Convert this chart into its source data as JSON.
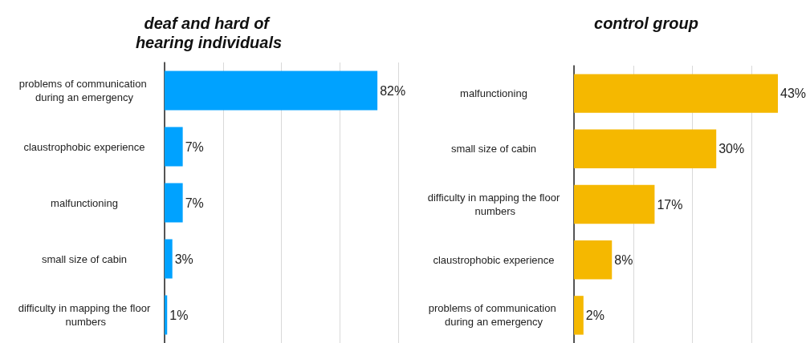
{
  "chart_data": [
    {
      "type": "bar",
      "orientation": "horizontal",
      "title": "deaf and hard of hearing individuals",
      "categories": [
        "problems of communication during an emergency",
        "claustrophobic experience",
        "malfunctioning",
        "small size of cabin",
        "difficulty in mapping the floor numbers"
      ],
      "values": [
        82,
        7,
        7,
        3,
        1
      ],
      "value_labels": [
        "82%",
        "7%",
        "7%",
        "3%",
        "1%"
      ],
      "color": "#00a2ff",
      "xlim": [
        0,
        90
      ],
      "xticks": [
        {
          "value": 0,
          "label": null
        },
        {
          "value": 22.5,
          "label": null
        },
        {
          "value": 45,
          "label": null
        },
        {
          "value": 67.5,
          "label": null
        },
        {
          "value": 90,
          "label": null
        }
      ],
      "grid": "x",
      "tick_labels": "y"
    },
    {
      "type": "bar",
      "orientation": "horizontal",
      "title": "control group",
      "categories": [
        "malfunctioning",
        "small size of cabin",
        "difficulty in mapping the floor numbers",
        "claustrophobic experience",
        "problems of communication during an emergency"
      ],
      "values": [
        43,
        30,
        17,
        8,
        2
      ],
      "value_labels": [
        "43%",
        "30%",
        "17%",
        "8%",
        "2%"
      ],
      "color": "#f5b800",
      "xticks": [
        {
          "value": 0,
          "label": null
        },
        {
          "value": 12.5,
          "label": null
        },
        {
          "value": 25,
          "label": null
        },
        {
          "value": 37.5,
          "label": null
        }
      ],
      "grid": "x",
      "tick_labels": "y"
    }
  ]
}
